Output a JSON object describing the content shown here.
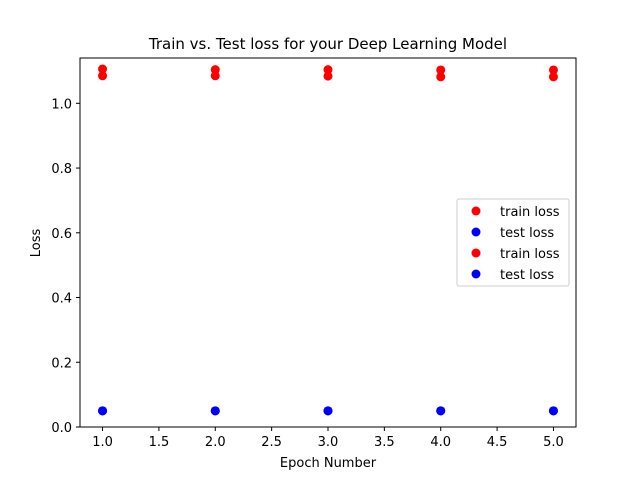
{
  "chart_data": {
    "type": "scatter",
    "title": "Train vs. Test loss for your Deep Learning Model",
    "xlabel": "Epoch Number",
    "ylabel": "Loss",
    "xlim": [
      0.8,
      5.2
    ],
    "ylim": [
      0.0,
      1.14
    ],
    "xticks": [
      "1.0",
      "1.5",
      "2.0",
      "2.5",
      "3.0",
      "3.5",
      "4.0",
      "4.5",
      "5.0"
    ],
    "yticks": [
      "0.0",
      "0.2",
      "0.4",
      "0.6",
      "0.8",
      "1.0"
    ],
    "grid": false,
    "legend_position": "center-right",
    "series": [
      {
        "name": "train loss",
        "color": "#ff0000",
        "x": [
          1,
          2,
          3,
          4,
          5
        ],
        "y": [
          1.106,
          1.104,
          1.104,
          1.103,
          1.103
        ]
      },
      {
        "name": "test loss",
        "color": "#0000ff",
        "x": [
          1,
          2,
          3,
          4,
          5
        ],
        "y": [
          0.05,
          0.05,
          0.05,
          0.05,
          0.05
        ]
      },
      {
        "name": "train loss",
        "color": "#ff0000",
        "x": [
          1,
          2,
          3,
          4,
          5
        ],
        "y": [
          1.085,
          1.085,
          1.084,
          1.082,
          1.082
        ]
      },
      {
        "name": "test loss",
        "color": "#0000ff",
        "x": [
          1,
          2,
          3,
          4,
          5
        ],
        "y": [
          0.05,
          0.05,
          0.05,
          0.05,
          0.05
        ]
      }
    ]
  }
}
